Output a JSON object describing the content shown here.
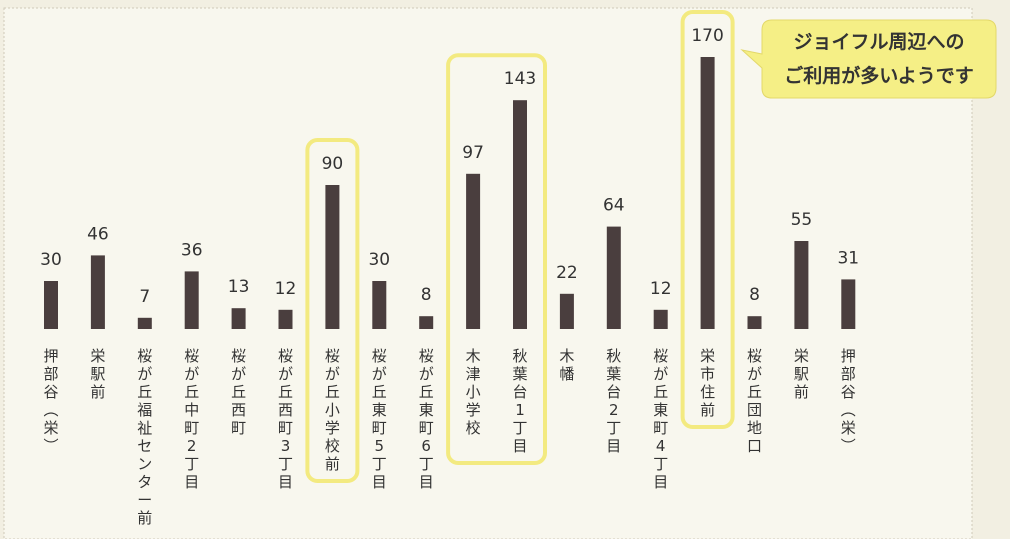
{
  "colors": {
    "background": "#f2efe2",
    "panel": "#f8f7ee",
    "bar": "#4a3e3e",
    "highlight": "#f3ea80",
    "callout_fill": "#f5ef86",
    "text": "#333333"
  },
  "callout": {
    "line1": "ジョイフル周辺への",
    "line2": "ご利用が多いようです"
  },
  "chart_data": {
    "type": "bar",
    "title": "",
    "xlabel": "",
    "ylabel": "",
    "grid": false,
    "legend": "none",
    "ylim": [
      0,
      180
    ],
    "categories": [
      "押部谷（栄）",
      "栄駅前",
      "桜が丘福祉センター前",
      "桜が丘中町2丁目",
      "桜が丘西町",
      "桜が丘西町3丁目",
      "桜が丘小学校前",
      "桜が丘東町5丁目",
      "桜が丘東町6丁目",
      "木津小学校",
      "秋葉台1丁目",
      "木幡",
      "秋葉台2丁目",
      "桜が丘東町4丁目",
      "栄市住前",
      "桜が丘団地口",
      "栄駅前",
      "押部谷（栄）"
    ],
    "values": [
      30,
      46,
      7,
      36,
      13,
      12,
      90,
      30,
      8,
      97,
      143,
      22,
      64,
      12,
      170,
      8,
      55,
      31
    ],
    "highlighted_categories": [
      "桜が丘小学校前",
      "木津小学校",
      "秋葉台1丁目",
      "栄市住前"
    ]
  }
}
